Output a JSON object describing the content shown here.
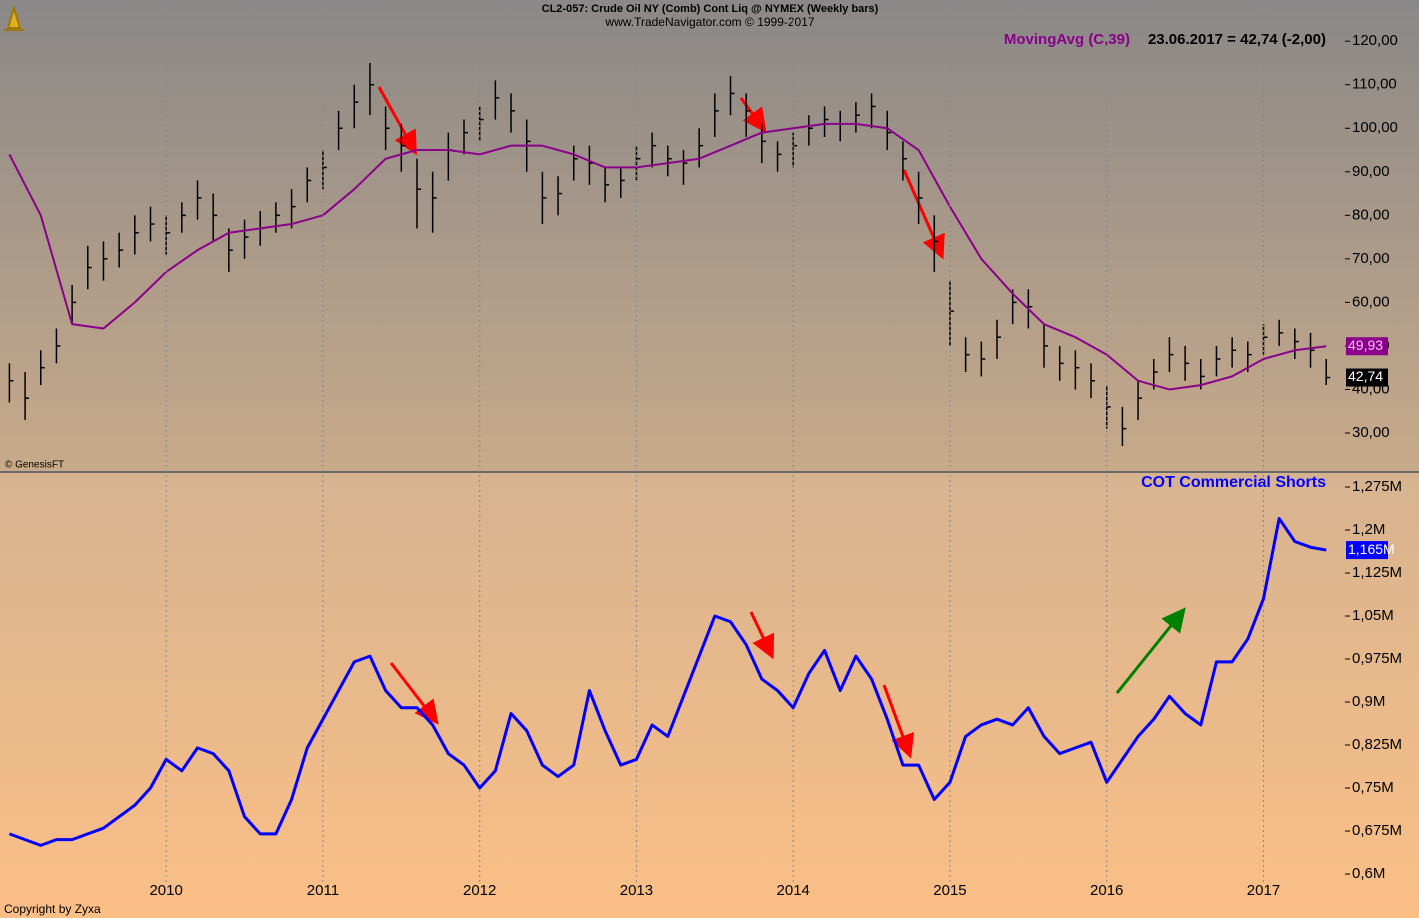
{
  "chart_data": [
    {
      "type": "ohlc",
      "title": "CL2-057:  Crude Oil NY (Comb) Cont Liq @ NYMEX  (Weekly bars)",
      "subtitle": "www.TradeNavigator.com © 1999-2017",
      "credit": "© GenesisFT",
      "annotation": "23.06.2017 = 42,74 (-2,00)",
      "color": "#000000",
      "x": [
        2009,
        2009.1,
        2009.2,
        2009.3,
        2009.4,
        2009.5,
        2009.6,
        2009.7,
        2009.8,
        2009.9,
        2010,
        2010.1,
        2010.2,
        2010.3,
        2010.4,
        2010.5,
        2010.6,
        2010.7,
        2010.8,
        2010.9,
        2011,
        2011.1,
        2011.2,
        2011.3,
        2011.4,
        2011.5,
        2011.6,
        2011.7,
        2011.8,
        2011.9,
        2012,
        2012.1,
        2012.2,
        2012.3,
        2012.4,
        2012.5,
        2012.6,
        2012.7,
        2012.8,
        2012.9,
        2013,
        2013.1,
        2013.2,
        2013.3,
        2013.4,
        2013.5,
        2013.6,
        2013.7,
        2013.8,
        2013.9,
        2014,
        2014.1,
        2014.2,
        2014.3,
        2014.4,
        2014.5,
        2014.6,
        2014.7,
        2014.8,
        2014.9,
        2015,
        2015.1,
        2015.2,
        2015.3,
        2015.4,
        2015.5,
        2015.6,
        2015.7,
        2015.8,
        2015.9,
        2016,
        2016.1,
        2016.2,
        2016.3,
        2016.4,
        2016.5,
        2016.6,
        2016.7,
        2016.8,
        2016.9,
        2017,
        2017.1,
        2017.2,
        2017.3,
        2017.4
      ],
      "high": [
        46,
        44,
        49,
        54,
        64,
        73,
        74,
        76,
        80,
        82,
        80,
        83,
        88,
        85,
        77,
        79,
        81,
        83,
        86,
        91,
        95,
        104,
        110,
        115,
        105,
        101,
        93,
        90,
        99,
        102,
        105,
        111,
        108,
        102,
        90,
        89,
        96,
        96,
        91,
        91,
        96,
        99,
        96,
        95,
        100,
        108,
        112,
        108,
        101,
        97,
        99,
        103,
        105,
        104,
        106,
        108,
        104,
        97,
        90,
        80,
        65,
        52,
        51,
        56,
        63,
        63,
        55,
        50,
        49,
        46,
        41,
        36,
        42,
        47,
        52,
        50,
        47,
        50,
        52,
        51,
        55,
        56,
        54,
        53,
        47
      ],
      "low": [
        37,
        33,
        41,
        46,
        55,
        63,
        65,
        68,
        71,
        74,
        71,
        76,
        79,
        74,
        67,
        70,
        73,
        76,
        77,
        83,
        86,
        95,
        100,
        103,
        95,
        90,
        77,
        76,
        88,
        94,
        97,
        102,
        99,
        90,
        78,
        80,
        88,
        87,
        83,
        84,
        88,
        91,
        89,
        87,
        91,
        98,
        103,
        98,
        92,
        90,
        91,
        96,
        98,
        97,
        99,
        100,
        95,
        88,
        78,
        67,
        50,
        44,
        43,
        47,
        55,
        54,
        45,
        42,
        40,
        38,
        31,
        27,
        33,
        40,
        44,
        42,
        40,
        43,
        45,
        44,
        48,
        50,
        47,
        45,
        41
      ],
      "close": [
        42,
        38,
        45,
        50,
        60,
        68,
        70,
        72,
        76,
        78,
        76,
        80,
        84,
        80,
        72,
        75,
        77,
        80,
        82,
        88,
        91,
        100,
        106,
        110,
        100,
        96,
        86,
        84,
        95,
        99,
        102,
        107,
        104,
        97,
        84,
        85,
        93,
        92,
        87,
        88,
        93,
        96,
        93,
        92,
        96,
        104,
        108,
        104,
        97,
        94,
        96,
        100,
        102,
        101,
        103,
        105,
        99,
        93,
        84,
        74,
        58,
        48,
        47,
        52,
        60,
        59,
        50,
        46,
        45,
        42,
        36,
        31,
        38,
        44,
        48,
        46,
        43,
        47,
        49,
        48,
        52,
        53,
        51,
        49,
        42.74
      ],
      "close_label": "42,74",
      "series": [
        {
          "name": "MovingAvg (C,39)",
          "color": "#8b008b",
          "x": [
            2009,
            2009.2,
            2009.4,
            2009.6,
            2009.8,
            2010,
            2010.2,
            2010.4,
            2010.6,
            2010.8,
            2011,
            2011.2,
            2011.4,
            2011.6,
            2011.8,
            2012,
            2012.2,
            2012.4,
            2012.6,
            2012.8,
            2013,
            2013.2,
            2013.4,
            2013.6,
            2013.8,
            2014,
            2014.2,
            2014.4,
            2014.6,
            2014.8,
            2015,
            2015.2,
            2015.4,
            2015.6,
            2015.8,
            2016,
            2016.2,
            2016.4,
            2016.6,
            2016.8,
            2017,
            2017.2,
            2017.4
          ],
          "values": [
            94,
            80,
            55,
            54,
            60,
            67,
            72,
            76,
            77,
            78,
            80,
            86,
            93,
            95,
            95,
            94,
            96,
            96,
            94,
            91,
            91,
            92,
            93,
            96,
            99,
            100,
            101,
            101,
            100,
            95,
            82,
            70,
            62,
            55,
            52,
            48,
            42,
            40,
            41,
            43,
            47,
            49,
            49.93
          ],
          "last_label": "49,93"
        }
      ],
      "xlim": [
        2008.94,
        2017.52
      ],
      "ylim": [
        21.5,
        129.0
      ],
      "yticks": [
        {
          "value": 30,
          "label": "30,00"
        },
        {
          "value": 40,
          "label": "40,00"
        },
        {
          "value": 50,
          "label": "50,00"
        },
        {
          "value": 60,
          "label": "60,00"
        },
        {
          "value": 70,
          "label": "70,00"
        },
        {
          "value": 80,
          "label": "80,00"
        },
        {
          "value": 90,
          "label": "90,00"
        },
        {
          "value": 100,
          "label": "100,00"
        },
        {
          "value": 110,
          "label": "110,00"
        },
        {
          "value": 120,
          "label": "120,00"
        }
      ]
    },
    {
      "type": "line",
      "x": [
        2009,
        2009.1,
        2009.2,
        2009.3,
        2009.4,
        2009.5,
        2009.6,
        2009.7,
        2009.8,
        2009.9,
        2010,
        2010.1,
        2010.2,
        2010.3,
        2010.4,
        2010.5,
        2010.6,
        2010.7,
        2010.8,
        2010.9,
        2011,
        2011.1,
        2011.2,
        2011.3,
        2011.4,
        2011.5,
        2011.6,
        2011.7,
        2011.8,
        2011.9,
        2012,
        2012.1,
        2012.2,
        2012.3,
        2012.4,
        2012.5,
        2012.6,
        2012.7,
        2012.8,
        2012.9,
        2013,
        2013.1,
        2013.2,
        2013.3,
        2013.4,
        2013.5,
        2013.6,
        2013.7,
        2013.8,
        2013.9,
        2014,
        2014.1,
        2014.2,
        2014.3,
        2014.4,
        2014.5,
        2014.6,
        2014.7,
        2014.8,
        2014.9,
        2015,
        2015.1,
        2015.2,
        2015.3,
        2015.4,
        2015.5,
        2015.6,
        2015.7,
        2015.8,
        2015.9,
        2016,
        2016.1,
        2016.2,
        2016.3,
        2016.4,
        2016.5,
        2016.6,
        2016.7,
        2016.8,
        2016.9,
        2017,
        2017.1,
        2017.2,
        2017.3,
        2017.4
      ],
      "series": [
        {
          "name": "COT Commercial Shorts",
          "color": "#0000ff",
          "values": [
            0.67,
            0.66,
            0.65,
            0.66,
            0.66,
            0.67,
            0.68,
            0.7,
            0.72,
            0.75,
            0.8,
            0.78,
            0.82,
            0.81,
            0.78,
            0.7,
            0.67,
            0.67,
            0.73,
            0.82,
            0.87,
            0.92,
            0.97,
            0.98,
            0.92,
            0.89,
            0.89,
            0.86,
            0.81,
            0.79,
            0.75,
            0.78,
            0.88,
            0.85,
            0.79,
            0.77,
            0.79,
            0.92,
            0.85,
            0.79,
            0.8,
            0.86,
            0.84,
            0.91,
            0.98,
            1.05,
            1.04,
            1.0,
            0.94,
            0.92,
            0.89,
            0.95,
            0.99,
            0.92,
            0.98,
            0.94,
            0.87,
            0.79,
            0.79,
            0.73,
            0.76,
            0.84,
            0.86,
            0.87,
            0.86,
            0.89,
            0.84,
            0.81,
            0.82,
            0.83,
            0.76,
            0.8,
            0.84,
            0.87,
            0.91,
            0.88,
            0.86,
            0.97,
            0.97,
            1.01,
            1.08,
            1.22,
            1.18,
            1.17,
            1.165
          ],
          "last_label": "1,165M"
        }
      ],
      "xlim": [
        2008.94,
        2017.52
      ],
      "xticks": [
        2010,
        2011,
        2012,
        2013,
        2014,
        2015,
        2016,
        2017
      ],
      "ylim": [
        0.5826,
        1.2977
      ],
      "yticks": [
        {
          "value": 0.6,
          "label": "0,6M"
        },
        {
          "value": 0.675,
          "label": "0,675M"
        },
        {
          "value": 0.75,
          "label": "0,75M"
        },
        {
          "value": 0.825,
          "label": "0,825M"
        },
        {
          "value": 0.9,
          "label": "0,9M"
        },
        {
          "value": 0.975,
          "label": "0,975M"
        },
        {
          "value": 1.05,
          "label": "1,05M"
        },
        {
          "value": 1.125,
          "label": "1,125M"
        },
        {
          "value": 1.2,
          "label": "1,2M"
        },
        {
          "value": 1.275,
          "label": "1,275M"
        }
      ]
    }
  ],
  "footer": "Copyright by Zyxa"
}
